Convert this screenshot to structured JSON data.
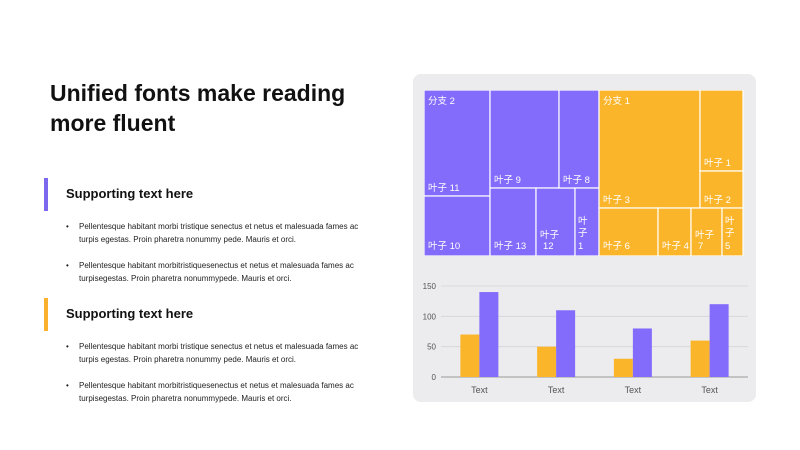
{
  "title": "Unified fonts make reading more fluent",
  "sections": [
    {
      "heading": "Supporting text here",
      "accent": "#7b68ee",
      "bullets": [
        "Pellentesque  habitant morbi tristique senectus et netus et malesuada fames ac turpis egestas. Proin pharetra nonummy  pede. Mauris et orci.",
        "Pellentesque  habitant morbitristiquesenectus  et netus et malesuada fames ac turpisegestas. Proin pharetra nonummypede.  Mauris et orci."
      ]
    },
    {
      "heading": "Supporting text here",
      "accent": "#fbb12e",
      "bullets": [
        "Pellentesque  habitant morbi tristique senectus et netus et malesuada fames ac turpis egestas. Proin pharetra nonummy  pede. Mauris et orci.",
        "Pellentesque  habitant morbitristiquesenectus  et netus et malesuada fames ac turpisegestas. Proin pharetra nonummypede.  Mauris et orci."
      ]
    }
  ],
  "colors": {
    "purple": "#836bfb",
    "orange": "#fbb52b",
    "panel": "#ececee"
  },
  "chart_data": [
    {
      "type": "treemap",
      "branches": [
        {
          "name": "分支 2",
          "color": "#836bfb",
          "leaves": [
            {
              "name": "叶子 11"
            },
            {
              "name": "叶子 10"
            },
            {
              "name": "叶子 9"
            },
            {
              "name": "叶子 13"
            },
            {
              "name": "叶子 12"
            },
            {
              "name": "叶子 8"
            },
            {
              "name": "叶子 15"
            }
          ]
        },
        {
          "name": "分支 1",
          "color": "#fbb52b",
          "leaves": [
            {
              "name": "叶子 3"
            },
            {
              "name": "叶子 1"
            },
            {
              "name": "叶子 2"
            },
            {
              "name": "叶子 6"
            },
            {
              "name": "叶子 4"
            },
            {
              "name": "叶子 7"
            },
            {
              "name": "叶子 5"
            }
          ]
        }
      ]
    },
    {
      "type": "bar",
      "categories": [
        "Text",
        "Text",
        "Text",
        "Text"
      ],
      "series": [
        {
          "values": [
            70,
            50,
            30,
            60
          ],
          "color": "#fbb52b"
        },
        {
          "values": [
            140,
            110,
            80,
            120
          ],
          "color": "#836bfb"
        }
      ],
      "ylim": [
        0,
        150
      ],
      "yticks": [
        0,
        50,
        100,
        150
      ],
      "grid": true
    }
  ]
}
